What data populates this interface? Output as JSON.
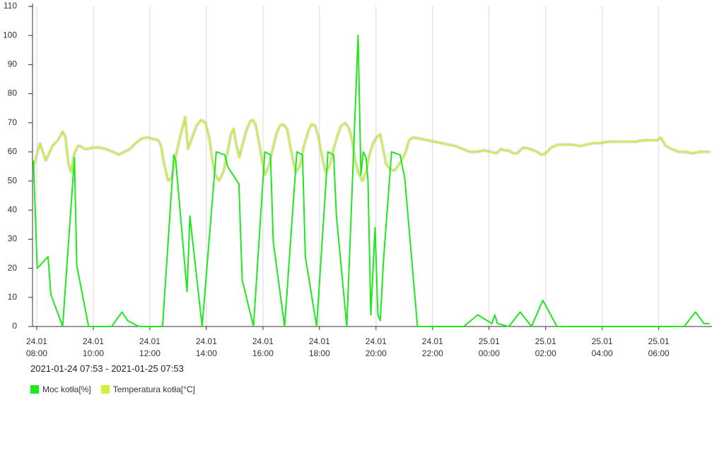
{
  "chart_data": {
    "type": "line",
    "subtitle": "2021-01-24 07:53 - 2021-01-25 07:53",
    "xlim": [
      "2021-01-24 07:53",
      "2021-01-25 07:53"
    ],
    "ylim": [
      0,
      110
    ],
    "yticks": [
      0,
      10,
      20,
      30,
      40,
      50,
      60,
      70,
      80,
      90,
      100,
      110
    ],
    "xticks": [
      {
        "value": "2021-01-24 08:00",
        "label": "24.01\n08:00"
      },
      {
        "value": "2021-01-24 10:00",
        "label": "24.01\n10:00"
      },
      {
        "value": "2021-01-24 12:00",
        "label": "24.01\n12:00"
      },
      {
        "value": "2021-01-24 14:00",
        "label": "24.01\n14:00"
      },
      {
        "value": "2021-01-24 16:00",
        "label": "24.01\n16:00"
      },
      {
        "value": "2021-01-24 18:00",
        "label": "24.01\n18:00"
      },
      {
        "value": "2021-01-24 20:00",
        "label": "24.01\n20:00"
      },
      {
        "value": "2021-01-24 22:00",
        "label": "24.01\n22:00"
      },
      {
        "value": "2021-01-25 00:00",
        "label": "25.01\n00:00"
      },
      {
        "value": "2021-01-25 02:00",
        "label": "25.01\n02:00"
      },
      {
        "value": "2021-01-25 04:00",
        "label": "25.01\n04:00"
      },
      {
        "value": "2021-01-25 06:00",
        "label": "25.01\n06:00"
      }
    ],
    "grid": true,
    "series": [
      {
        "name": "Moc kotła[%]",
        "color": "#1ee81e",
        "x": [
          "2021-01-24 07:53",
          "2021-01-24 08:01",
          "2021-01-24 08:24",
          "2021-01-24 08:30",
          "2021-01-24 08:55",
          "2021-01-24 09:20",
          "2021-01-24 09:25",
          "2021-01-24 09:50",
          "2021-01-24 10:39",
          "2021-01-24 11:01",
          "2021-01-24 11:13",
          "2021-01-24 11:37",
          "2021-01-24 12:27",
          "2021-01-24 12:51",
          "2021-01-24 12:55",
          "2021-01-24 13:19",
          "2021-01-24 13:25",
          "2021-01-24 13:51",
          "2021-01-24 14:21",
          "2021-01-24 14:39",
          "2021-01-24 14:45",
          "2021-01-24 15:09",
          "2021-01-24 15:16",
          "2021-01-24 15:40",
          "2021-01-24 16:04",
          "2021-01-24 16:16",
          "2021-01-24 16:22",
          "2021-01-24 16:46",
          "2021-01-24 17:12",
          "2021-01-24 17:24",
          "2021-01-24 17:30",
          "2021-01-24 17:54",
          "2021-01-24 18:18",
          "2021-01-24 18:30",
          "2021-01-24 18:36",
          "2021-01-24 18:58",
          "2021-01-24 19:22",
          "2021-01-24 19:28",
          "2021-01-24 19:33",
          "2021-01-24 19:39",
          "2021-01-24 19:43",
          "2021-01-24 19:49",
          "2021-01-24 19:58",
          "2021-01-24 20:04",
          "2021-01-24 20:09",
          "2021-01-24 20:16",
          "2021-01-24 20:33",
          "2021-01-24 20:51",
          "2021-01-24 21:01",
          "2021-01-24 21:28",
          "2021-01-24 23:06",
          "2021-01-24 23:36",
          "2021-01-25 00:06",
          "2021-01-25 00:12",
          "2021-01-25 00:18",
          "2021-01-25 00:42",
          "2021-01-25 01:06",
          "2021-01-25 01:30",
          "2021-01-25 01:54",
          "2021-01-25 02:24",
          "2021-01-25 06:54",
          "2021-01-25 07:18",
          "2021-01-25 07:36",
          "2021-01-25 07:48"
        ],
        "values": [
          57,
          20,
          24,
          11,
          0,
          58,
          21,
          0,
          0,
          5,
          2,
          0,
          0,
          59,
          57,
          12,
          38,
          0,
          60,
          59,
          55,
          49,
          16,
          0,
          60,
          59,
          29,
          0,
          60,
          59,
          24,
          0,
          60,
          59,
          38,
          0,
          100,
          52,
          60,
          58,
          50,
          4,
          34,
          4,
          2,
          23,
          60,
          59,
          51,
          0,
          0,
          4,
          1,
          4,
          1,
          0,
          5,
          0,
          9,
          0,
          0,
          5,
          1,
          1
        ]
      },
      {
        "name": "Temperatura kotła[°C]",
        "color": "#ccf23a",
        "x": [
          "2021-01-24 07:53",
          "2021-01-24 08:00",
          "2021-01-24 08:07",
          "2021-01-24 08:13",
          "2021-01-24 08:19",
          "2021-01-24 08:25",
          "2021-01-24 08:33",
          "2021-01-24 08:45",
          "2021-01-24 08:55",
          "2021-01-24 09:01",
          "2021-01-24 09:07",
          "2021-01-24 09:13",
          "2021-01-24 09:19",
          "2021-01-24 09:27",
          "2021-01-24 09:33",
          "2021-01-24 09:42",
          "2021-01-24 09:49",
          "2021-01-24 09:58",
          "2021-01-24 10:12",
          "2021-01-24 10:27",
          "2021-01-24 10:42",
          "2021-01-24 10:54",
          "2021-01-24 11:06",
          "2021-01-24 11:18",
          "2021-01-24 11:30",
          "2021-01-24 11:42",
          "2021-01-24 11:54",
          "2021-01-24 12:06",
          "2021-01-24 12:18",
          "2021-01-24 12:24",
          "2021-01-24 12:30",
          "2021-01-24 12:39",
          "2021-01-24 12:46",
          "2021-01-24 12:57",
          "2021-01-24 13:07",
          "2021-01-24 13:15",
          "2021-01-24 13:21",
          "2021-01-24 13:30",
          "2021-01-24 13:39",
          "2021-01-24 13:49",
          "2021-01-24 13:58",
          "2021-01-24 14:06",
          "2021-01-24 14:13",
          "2021-01-24 14:19",
          "2021-01-24 14:27",
          "2021-01-24 14:36",
          "2021-01-24 14:45",
          "2021-01-24 14:52",
          "2021-01-24 14:58",
          "2021-01-24 15:04",
          "2021-01-24 15:10",
          "2021-01-24 15:16",
          "2021-01-24 15:24",
          "2021-01-24 15:33",
          "2021-01-24 15:39",
          "2021-01-24 15:45",
          "2021-01-24 15:52",
          "2021-01-24 15:58",
          "2021-01-24 16:04",
          "2021-01-24 16:12",
          "2021-01-24 16:21",
          "2021-01-24 16:28",
          "2021-01-24 16:36",
          "2021-01-24 16:43",
          "2021-01-24 16:51",
          "2021-01-24 16:58",
          "2021-01-24 17:04",
          "2021-01-24 17:10",
          "2021-01-24 17:18",
          "2021-01-24 17:27",
          "2021-01-24 17:36",
          "2021-01-24 17:43",
          "2021-01-24 17:51",
          "2021-01-24 17:58",
          "2021-01-24 18:06",
          "2021-01-24 18:13",
          "2021-01-24 18:21",
          "2021-01-24 18:30",
          "2021-01-24 18:39",
          "2021-01-24 18:46",
          "2021-01-24 18:55",
          "2021-01-24 19:03",
          "2021-01-24 19:09",
          "2021-01-24 19:16",
          "2021-01-24 19:22",
          "2021-01-24 19:31",
          "2021-01-24 19:39",
          "2021-01-24 19:46",
          "2021-01-24 19:54",
          "2021-01-24 20:01",
          "2021-01-24 20:09",
          "2021-01-24 20:15",
          "2021-01-24 20:21",
          "2021-01-24 20:30",
          "2021-01-24 20:39",
          "2021-01-24 20:46",
          "2021-01-24 20:54",
          "2021-01-24 21:03",
          "2021-01-24 21:10",
          "2021-01-24 21:19",
          "2021-01-24 21:34",
          "2021-01-24 21:49",
          "2021-01-24 22:04",
          "2021-01-24 22:19",
          "2021-01-24 22:34",
          "2021-01-24 22:49",
          "2021-01-24 23:04",
          "2021-01-24 23:19",
          "2021-01-24 23:34",
          "2021-01-24 23:49",
          "2021-01-25 00:04",
          "2021-01-25 00:16",
          "2021-01-25 00:25",
          "2021-01-25 00:33",
          "2021-01-25 00:42",
          "2021-01-25 00:51",
          "2021-01-25 01:00",
          "2021-01-25 01:12",
          "2021-01-25 01:27",
          "2021-01-25 01:42",
          "2021-01-25 01:51",
          "2021-01-25 02:00",
          "2021-01-25 02:12",
          "2021-01-25 02:27",
          "2021-01-25 02:42",
          "2021-01-25 02:57",
          "2021-01-25 03:12",
          "2021-01-25 03:27",
          "2021-01-25 03:42",
          "2021-01-25 03:57",
          "2021-01-25 04:12",
          "2021-01-25 04:27",
          "2021-01-25 04:42",
          "2021-01-25 04:57",
          "2021-01-25 05:12",
          "2021-01-25 05:27",
          "2021-01-25 05:42",
          "2021-01-25 05:57",
          "2021-01-25 06:04",
          "2021-01-25 06:15",
          "2021-01-25 06:27",
          "2021-01-25 06:42",
          "2021-01-25 06:57",
          "2021-01-25 07:12",
          "2021-01-25 07:27",
          "2021-01-25 07:42",
          "2021-01-25 07:49"
        ],
        "values": [
          55,
          59,
          63,
          60,
          57,
          59,
          62,
          64,
          67,
          65,
          56,
          53,
          59,
          62,
          62,
          61,
          61,
          61.5,
          61.5,
          61,
          60,
          59,
          60,
          61,
          63,
          64.5,
          65,
          64.5,
          64,
          62,
          56,
          50,
          51,
          60,
          67,
          72,
          61,
          65,
          69,
          71,
          70,
          65,
          57,
          52,
          50,
          53,
          60,
          66,
          68,
          62,
          58,
          62,
          67,
          70.5,
          71,
          69,
          63,
          57,
          52,
          55,
          61,
          66,
          69,
          69.5,
          68,
          62,
          57,
          53,
          55,
          62,
          67,
          69.5,
          69,
          65,
          58,
          53,
          55,
          61,
          66,
          69,
          70,
          68,
          64,
          57,
          53,
          50,
          53,
          59,
          63,
          65,
          66,
          61,
          56,
          54,
          53.5,
          55,
          57,
          60,
          64,
          65,
          64.5,
          64,
          63.5,
          63,
          62.5,
          62,
          61,
          60,
          60,
          60.5,
          60,
          59.5,
          61,
          60.5,
          60.5,
          59.5,
          59.5,
          61.5,
          61,
          60,
          59,
          59.5,
          61.5,
          62.5,
          62.5,
          62.5,
          62,
          62.5,
          63,
          63,
          63.5,
          63.5,
          63.5,
          63.5,
          63.5,
          64,
          64,
          64,
          65,
          62,
          61,
          60,
          60,
          59.5,
          60,
          60,
          60
        ]
      }
    ]
  }
}
